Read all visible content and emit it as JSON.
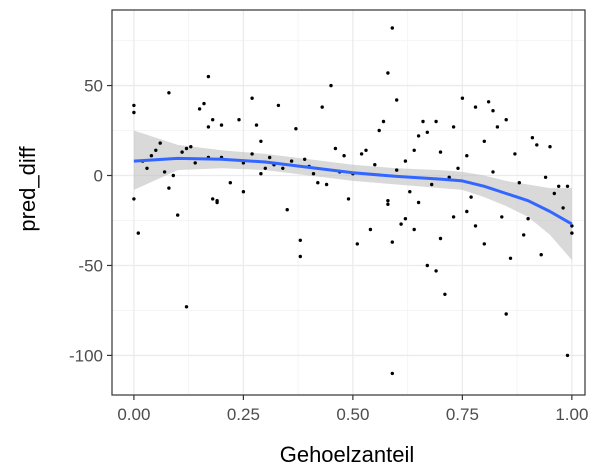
{
  "chart_data": {
    "type": "scatter",
    "xlabel": "Gehoelzanteil",
    "ylabel": "pred_diff",
    "xlim": [
      -0.05,
      1.03
    ],
    "ylim": [
      -122,
      92
    ],
    "xticks": [
      0,
      0.25,
      0.5,
      0.75,
      1
    ],
    "xtick_labels": [
      "0.00",
      "0.25",
      "0.50",
      "0.75",
      "1.00"
    ],
    "yticks": [
      -100,
      -50,
      0,
      50
    ],
    "ytick_labels": [
      "-100",
      "-50",
      "0",
      "50"
    ],
    "grid": true,
    "legend": "none",
    "colors": {
      "panel": "#ffffff",
      "border": "#333333",
      "grid_major": "#ebebeb",
      "grid_minor": "#f5f5f5",
      "points": "#000000",
      "smooth_line": "#3366ff",
      "confidence_band": "#bfbfbf"
    },
    "points": [
      [
        0.0,
        39
      ],
      [
        0.0,
        35
      ],
      [
        0.0,
        -13
      ],
      [
        0.01,
        -32
      ],
      [
        0.02,
        8
      ],
      [
        0.03,
        4
      ],
      [
        0.04,
        11
      ],
      [
        0.05,
        14
      ],
      [
        0.06,
        18
      ],
      [
        0.07,
        2
      ],
      [
        0.08,
        46
      ],
      [
        0.08,
        -7
      ],
      [
        0.09,
        0
      ],
      [
        0.1,
        -22
      ],
      [
        0.11,
        13
      ],
      [
        0.12,
        15
      ],
      [
        0.12,
        -73
      ],
      [
        0.13,
        16
      ],
      [
        0.14,
        7
      ],
      [
        0.15,
        37
      ],
      [
        0.16,
        40
      ],
      [
        0.17,
        55
      ],
      [
        0.17,
        27
      ],
      [
        0.17,
        10
      ],
      [
        0.18,
        -13
      ],
      [
        0.18,
        31
      ],
      [
        0.19,
        -14
      ],
      [
        0.19,
        -15
      ],
      [
        0.2,
        28
      ],
      [
        0.2,
        10
      ],
      [
        0.22,
        -4
      ],
      [
        0.24,
        31
      ],
      [
        0.25,
        7
      ],
      [
        0.25,
        -9
      ],
      [
        0.27,
        43
      ],
      [
        0.27,
        12
      ],
      [
        0.28,
        28
      ],
      [
        0.29,
        19
      ],
      [
        0.29,
        1
      ],
      [
        0.3,
        4
      ],
      [
        0.31,
        10
      ],
      [
        0.32,
        6
      ],
      [
        0.33,
        39
      ],
      [
        0.34,
        4
      ],
      [
        0.35,
        -19
      ],
      [
        0.36,
        8
      ],
      [
        0.37,
        26
      ],
      [
        0.38,
        -36
      ],
      [
        0.38,
        -45
      ],
      [
        0.39,
        9
      ],
      [
        0.4,
        5
      ],
      [
        0.41,
        1
      ],
      [
        0.42,
        -4
      ],
      [
        0.43,
        38
      ],
      [
        0.44,
        -5
      ],
      [
        0.45,
        50
      ],
      [
        0.46,
        15
      ],
      [
        0.47,
        2
      ],
      [
        0.48,
        11
      ],
      [
        0.49,
        -13
      ],
      [
        0.5,
        1
      ],
      [
        0.51,
        -38
      ],
      [
        0.52,
        12
      ],
      [
        0.53,
        14
      ],
      [
        0.54,
        -30
      ],
      [
        0.55,
        6
      ],
      [
        0.56,
        25
      ],
      [
        0.57,
        30
      ],
      [
        0.58,
        -14
      ],
      [
        0.58,
        -16
      ],
      [
        0.58,
        57
      ],
      [
        0.59,
        82
      ],
      [
        0.59,
        -37
      ],
      [
        0.6,
        3
      ],
      [
        0.6,
        42
      ],
      [
        0.61,
        -27
      ],
      [
        0.62,
        8
      ],
      [
        0.62,
        -24
      ],
      [
        0.63,
        -9
      ],
      [
        0.64,
        14
      ],
      [
        0.64,
        -30
      ],
      [
        0.65,
        22
      ],
      [
        0.65,
        -15
      ],
      [
        0.66,
        30
      ],
      [
        0.67,
        24
      ],
      [
        0.67,
        -50
      ],
      [
        0.68,
        -5
      ],
      [
        0.69,
        30
      ],
      [
        0.69,
        -53
      ],
      [
        0.7,
        13
      ],
      [
        0.7,
        -35
      ],
      [
        0.71,
        -66
      ],
      [
        0.72,
        -1
      ],
      [
        0.73,
        27
      ],
      [
        0.73,
        -23
      ],
      [
        0.74,
        4
      ],
      [
        0.75,
        43
      ],
      [
        0.76,
        -20
      ],
      [
        0.76,
        11
      ],
      [
        0.77,
        -12
      ],
      [
        0.78,
        38
      ],
      [
        0.78,
        -28
      ],
      [
        0.8,
        19
      ],
      [
        0.8,
        -38
      ],
      [
        0.81,
        41
      ],
      [
        0.82,
        36
      ],
      [
        0.82,
        2
      ],
      [
        0.83,
        27
      ],
      [
        0.84,
        -23
      ],
      [
        0.85,
        31
      ],
      [
        0.85,
        -77
      ],
      [
        0.86,
        -46
      ],
      [
        0.87,
        12
      ],
      [
        0.88,
        -4
      ],
      [
        0.89,
        -33
      ],
      [
        0.9,
        -24
      ],
      [
        0.91,
        21
      ],
      [
        0.92,
        17
      ],
      [
        0.93,
        -44
      ],
      [
        0.94,
        -1
      ],
      [
        0.95,
        16
      ],
      [
        0.96,
        -10
      ],
      [
        0.97,
        -6
      ],
      [
        0.98,
        -18
      ],
      [
        0.99,
        -6
      ],
      [
        0.99,
        -100
      ],
      [
        1.0,
        -32
      ],
      [
        1.0,
        -28
      ],
      [
        0.59,
        -110
      ]
    ],
    "smooth": [
      {
        "x": 0.0,
        "y": 8,
        "lo": -8,
        "hi": 25
      },
      {
        "x": 0.1,
        "y": 9.5,
        "lo": 3,
        "hi": 17
      },
      {
        "x": 0.2,
        "y": 9,
        "lo": 4,
        "hi": 14
      },
      {
        "x": 0.3,
        "y": 7.5,
        "lo": 3,
        "hi": 12
      },
      {
        "x": 0.4,
        "y": 4.5,
        "lo": 0,
        "hi": 9
      },
      {
        "x": 0.5,
        "y": 1.5,
        "lo": -3,
        "hi": 6
      },
      {
        "x": 0.6,
        "y": -0.5,
        "lo": -5,
        "hi": 4
      },
      {
        "x": 0.7,
        "y": -2,
        "lo": -7,
        "hi": 3
      },
      {
        "x": 0.75,
        "y": -3,
        "lo": -8,
        "hi": 2
      },
      {
        "x": 0.8,
        "y": -6,
        "lo": -12,
        "hi": 0
      },
      {
        "x": 0.85,
        "y": -10,
        "lo": -17,
        "hi": -3
      },
      {
        "x": 0.9,
        "y": -14,
        "lo": -23,
        "hi": -5
      },
      {
        "x": 0.95,
        "y": -20,
        "lo": -33,
        "hi": -7
      },
      {
        "x": 1.0,
        "y": -27,
        "lo": -47,
        "hi": -7
      }
    ]
  }
}
